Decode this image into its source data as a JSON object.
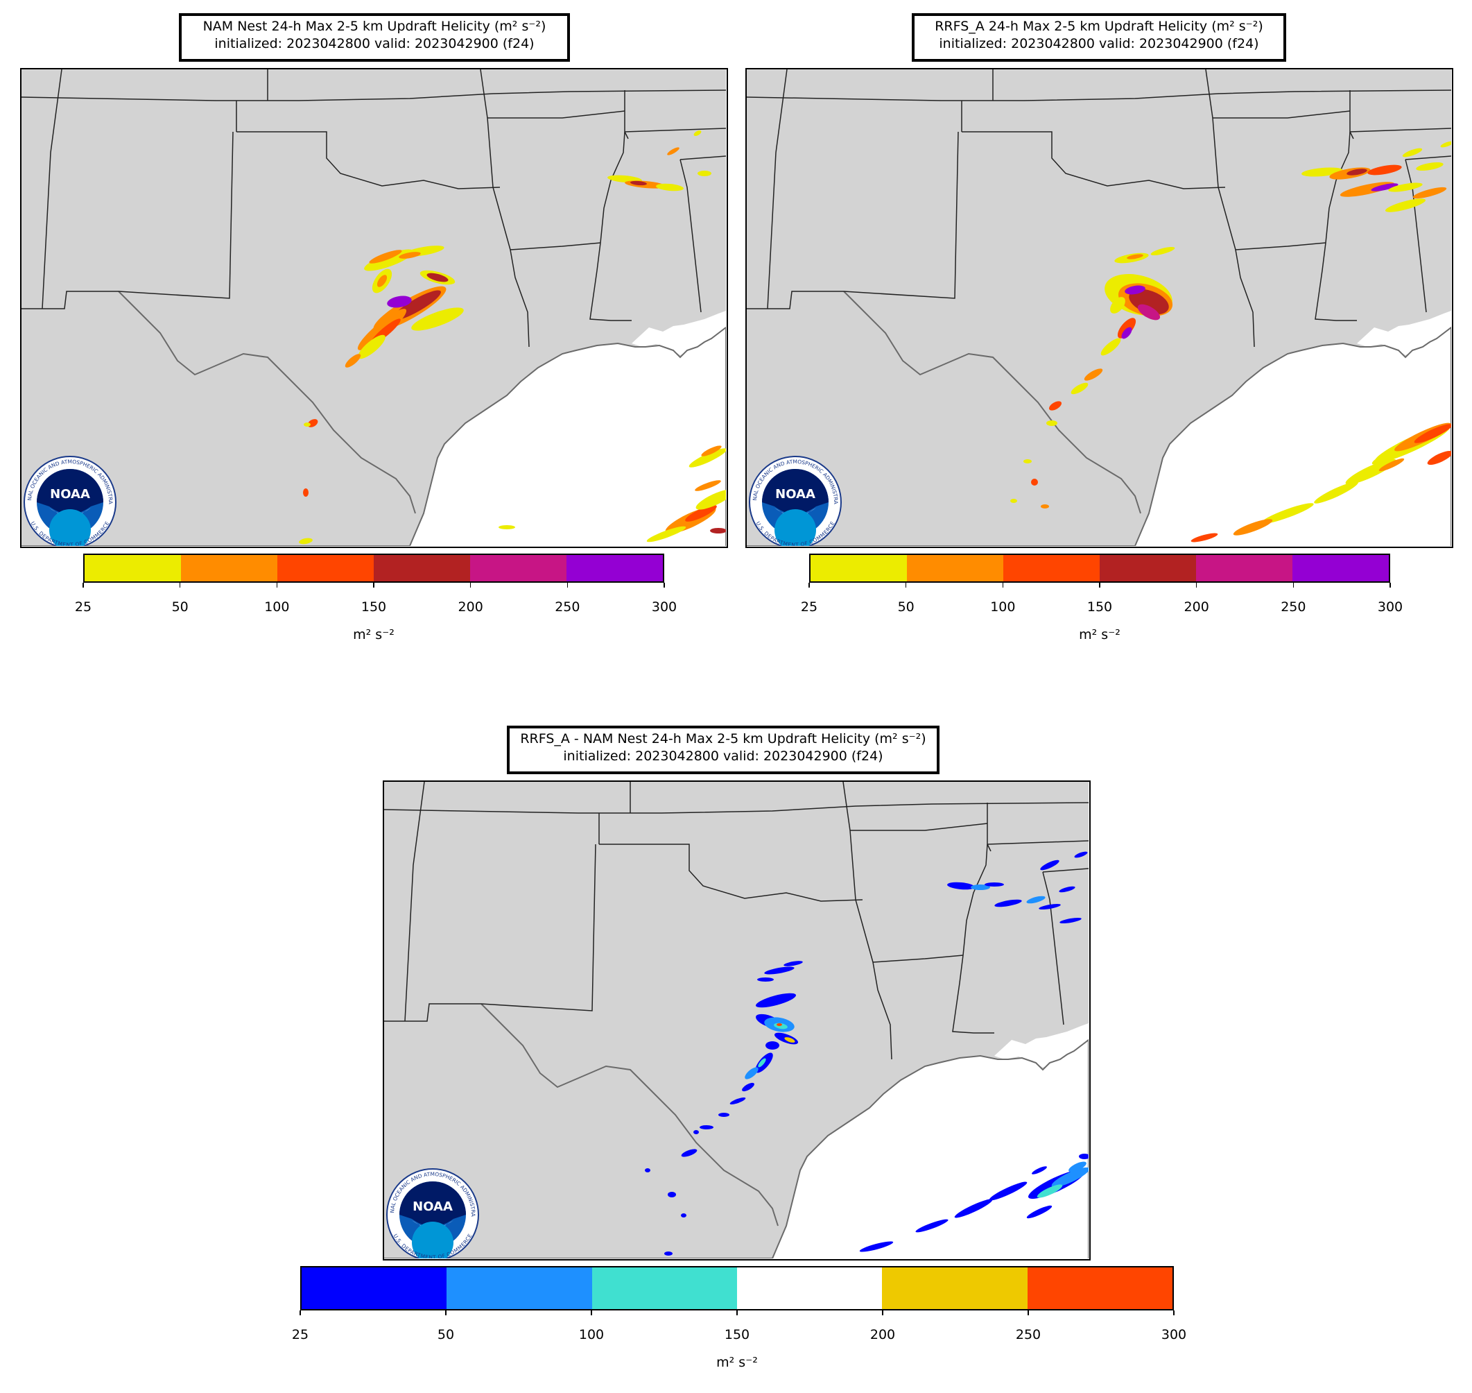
{
  "panels": [
    {
      "id": "nam",
      "title_line1": "NAM Nest 24-h Max 2-5 km Updraft Helicity (m² s⁻²)",
      "title_line2": "initialized: 2023042800 valid: 2023042900 (f24)",
      "colorbar": {
        "ticks": [
          "25",
          "50",
          "100",
          "150",
          "200",
          "250",
          "300"
        ],
        "colors": [
          "#ecec00",
          "#ff8c00",
          "#ff4500",
          "#b22222",
          "#c71585",
          "#9400d3"
        ],
        "unit": "m² s⁻²"
      }
    },
    {
      "id": "rrfs",
      "title_line1": "RRFS_A 24-h Max 2-5 km Updraft Helicity (m² s⁻²)",
      "title_line2": "initialized: 2023042800 valid: 2023042900 (f24)",
      "colorbar": {
        "ticks": [
          "25",
          "50",
          "100",
          "150",
          "200",
          "250",
          "300"
        ],
        "colors": [
          "#ecec00",
          "#ff8c00",
          "#ff4500",
          "#b22222",
          "#c71585",
          "#9400d3"
        ],
        "unit": "m² s⁻²"
      }
    },
    {
      "id": "diff",
      "title_line1": "RRFS_A - NAM Nest 24-h Max 2-5 km Updraft Helicity (m² s⁻²)",
      "title_line2": "initialized: 2023042800 valid: 2023042900 (f24)",
      "colorbar": {
        "ticks": [
          "25",
          "50",
          "100",
          "150",
          "200",
          "250",
          "300"
        ],
        "colors": [
          "#0000ff",
          "#1e90ff",
          "#40e0d0",
          "#ffffff",
          "#eec900",
          "#ff4500"
        ],
        "unit": "m² s⁻²"
      }
    }
  ],
  "logo": {
    "name": "NOAA",
    "ring_text_top": "NATIONAL OCEANIC AND ATMOSPHERIC ADMINISTRATION",
    "ring_text_bottom": "U.S. DEPARTMENT OF COMMERCE"
  },
  "colors": {
    "land": "#d3d3d3",
    "water": "#ffffff",
    "border": "#222222",
    "coast": "#6a6a6a"
  }
}
